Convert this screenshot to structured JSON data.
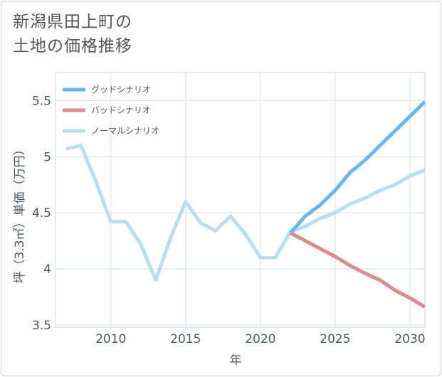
{
  "chart_data": {
    "type": "line",
    "title_lines": [
      "新潟県田上町の",
      "土地の価格推移"
    ],
    "xlabel": "年",
    "ylabel": "坪（3.3㎡）単価（万円）",
    "xlim": [
      2006.3,
      2031
    ],
    "ylim": [
      3.48,
      5.75
    ],
    "x_ticks": [
      2010,
      2015,
      2020,
      2025,
      2030
    ],
    "x_tick_labels": [
      "2010",
      "2015",
      "2020",
      "2025",
      "2030"
    ],
    "y_ticks": [
      3.5,
      4,
      4.5,
      5,
      5.5
    ],
    "y_tick_labels": [
      "3.5",
      "4",
      "4.5",
      "5",
      "5.5"
    ],
    "grid": true,
    "legend_position": "top-left",
    "series": [
      {
        "name": "グッドシナリオ",
        "color": "#6bb7ec",
        "x": [
          2022,
          2023,
          2024,
          2025,
          2026,
          2027,
          2028,
          2029,
          2030,
          2031
        ],
        "values": [
          4.32,
          4.47,
          4.57,
          4.7,
          4.86,
          4.97,
          5.1,
          5.23,
          5.36,
          5.49
        ]
      },
      {
        "name": "バッドシナリオ",
        "color": "#dd8a92",
        "x": [
          2022,
          2023,
          2024,
          2025,
          2026,
          2027,
          2028,
          2029,
          2030,
          2031
        ],
        "values": [
          4.32,
          4.25,
          4.18,
          4.11,
          4.03,
          3.96,
          3.9,
          3.81,
          3.74,
          3.66
        ]
      },
      {
        "name": "ノーマルシナリオ",
        "color": "#b9dfed",
        "x": [
          2007,
          2008,
          2009,
          2010,
          2011,
          2012,
          2013,
          2014,
          2015,
          2016,
          2017,
          2018,
          2019,
          2020,
          2021,
          2022,
          2023,
          2024,
          2025,
          2026,
          2027,
          2028,
          2029,
          2030,
          2031
        ],
        "values": [
          5.07,
          5.1,
          4.78,
          4.42,
          4.42,
          4.22,
          3.9,
          4.28,
          4.6,
          4.41,
          4.34,
          4.47,
          4.31,
          4.1,
          4.1,
          4.33,
          4.38,
          4.45,
          4.5,
          4.58,
          4.63,
          4.7,
          4.75,
          4.83,
          4.88
        ]
      }
    ]
  }
}
